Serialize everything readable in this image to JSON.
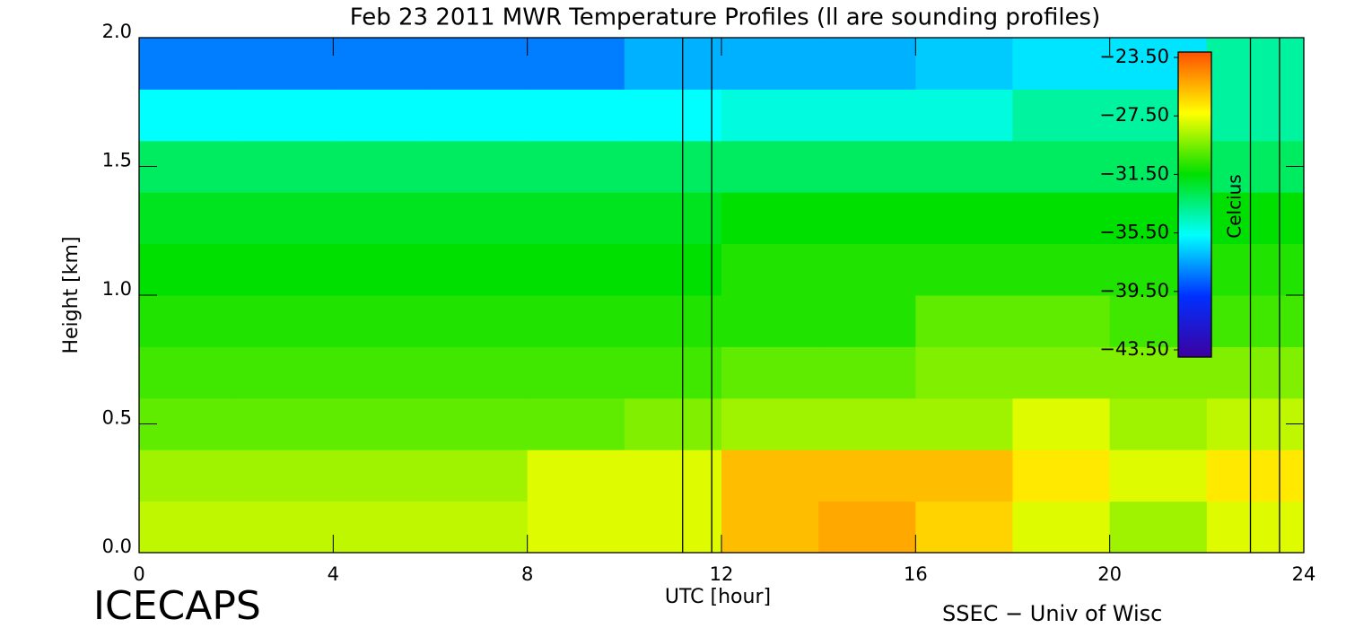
{
  "chart_data": {
    "type": "contour",
    "title": "Feb 23 2011 MWR Temperature Profiles (ll are sounding profiles)",
    "x_label": "UTC [hour]",
    "y_label": "Height [km]",
    "colorbar_label": "Celcius",
    "left_footer": "ICECAPS",
    "right_footer": "SSEC − Univ of Wisc",
    "xlim": [
      0,
      24
    ],
    "xticks": [
      0,
      4,
      8,
      12,
      16,
      20,
      24
    ],
    "ylim": [
      0,
      2
    ],
    "yticks": [
      {
        "value": 0,
        "label": "0.0"
      },
      {
        "value": 0.5,
        "label": "0.5"
      },
      {
        "value": 1,
        "label": "1.0"
      },
      {
        "value": 1.5,
        "label": "1.5"
      },
      {
        "value": 2,
        "label": "2.0"
      }
    ],
    "zlim": [
      -43.5,
      -23.5
    ],
    "zticks": [
      {
        "value": -23.5,
        "label": "−23.50"
      },
      {
        "value": -27.5,
        "label": "−27.50"
      },
      {
        "value": -31.5,
        "label": "−31.50"
      },
      {
        "value": -35.5,
        "label": "−35.50"
      },
      {
        "value": -39.5,
        "label": "−39.50"
      },
      {
        "value": -43.5,
        "label": "−43.50"
      }
    ],
    "colormap": [
      "#3c00a0",
      "#0030ff",
      "#00ffff",
      "#00e000",
      "#ffff00",
      "#ff5000"
    ],
    "sounding_times": [
      11.2,
      11.8,
      22.9,
      23.5
    ],
    "x": [
      1,
      3,
      5,
      7,
      9,
      11,
      13,
      15,
      17,
      19,
      21,
      23
    ],
    "y": [
      0.1,
      0.3,
      0.5,
      0.7,
      0.9,
      1.1,
      1.3,
      1.5,
      1.7,
      1.9
    ],
    "values": [
      [
        -28.5,
        -28.5,
        -28.5,
        -28.5,
        -28,
        -28,
        -26,
        -25.5,
        -26.5,
        -28,
        -29,
        -28
      ],
      [
        -29,
        -29,
        -29,
        -29,
        -28,
        -28,
        -26,
        -26,
        -26,
        -27,
        -28,
        -27
      ],
      [
        -30,
        -30,
        -30,
        -30,
        -30,
        -29.5,
        -29,
        -29,
        -29,
        -28,
        -29,
        -28.5
      ],
      [
        -30.5,
        -30.5,
        -30.5,
        -30.5,
        -30.5,
        -30.5,
        -30,
        -30,
        -29.5,
        -29.5,
        -29.5,
        -29.5
      ],
      [
        -31,
        -31,
        -31,
        -31,
        -31,
        -31,
        -31,
        -31,
        -30,
        -30,
        -30.5,
        -30.5
      ],
      [
        -31.5,
        -31.5,
        -31.5,
        -31.5,
        -31.5,
        -31.5,
        -31,
        -31,
        -31,
        -31,
        -31,
        -31
      ],
      [
        -32,
        -32,
        -32,
        -32,
        -32,
        -32,
        -31.5,
        -31.5,
        -31.5,
        -31.5,
        -31.5,
        -31.5
      ],
      [
        -33,
        -33,
        -33,
        -33,
        -33,
        -33,
        -33,
        -33,
        -33,
        -33,
        -33,
        -33
      ],
      [
        -35.5,
        -35.5,
        -35.5,
        -35.5,
        -35.5,
        -35.5,
        -35,
        -35,
        -35,
        -34,
        -34,
        -34
      ],
      [
        -38,
        -38,
        -38,
        -38,
        -38,
        -37,
        -37,
        -37,
        -36.5,
        -36,
        -36,
        -34
      ]
    ]
  }
}
